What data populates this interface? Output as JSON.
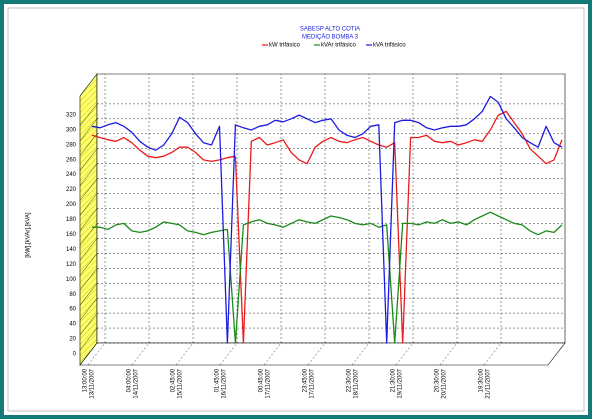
{
  "chart_data": {
    "type": "line",
    "title": "SABESP ALTO COTIA",
    "subtitle": "MEDIÇÃO BOMBA 3",
    "y_label": "[kW],[kVAr],[kVA]",
    "x_tick_labels": [
      [
        "13:00:00",
        "13/11/2007"
      ],
      [
        "04:00:00",
        "14/11/2007"
      ],
      [
        "02:45:00",
        "15/11/2007"
      ],
      [
        "01:45:00",
        "16/11/2007"
      ],
      [
        "00:45:00",
        "17/11/2007"
      ],
      [
        "23:45:00",
        "17/11/2007"
      ],
      [
        "22:30:00",
        "18/11/2007"
      ],
      [
        "21:30:00",
        "19/11/2007"
      ],
      [
        "20:30:00",
        "20/11/2007"
      ],
      [
        "19:30:00",
        "21/11/2007"
      ]
    ],
    "ylim": [
      0,
      360
    ],
    "yticks": [
      0,
      20,
      40,
      60,
      80,
      100,
      120,
      140,
      160,
      180,
      200,
      220,
      240,
      260,
      280,
      300,
      320
    ],
    "grid": true,
    "series": [
      {
        "name": "kW trifásico",
        "color": "#e81c1c",
        "values": [
          278,
          275,
          272,
          270,
          275,
          268,
          258,
          250,
          248,
          250,
          255,
          262,
          262,
          255,
          245,
          243,
          245,
          248,
          250,
          0,
          270,
          275,
          265,
          268,
          272,
          255,
          245,
          240,
          262,
          270,
          275,
          270,
          268,
          272,
          275,
          270,
          265,
          262,
          268,
          0,
          275,
          275,
          278,
          270,
          268,
          270,
          265,
          268,
          272,
          270,
          285,
          305,
          310,
          295,
          280,
          260,
          250,
          240,
          245,
          272
        ]
      },
      {
        "name": "kVAr trifásico",
        "color": "#1a8a1a",
        "values": [
          155,
          155,
          152,
          158,
          160,
          150,
          148,
          150,
          155,
          162,
          160,
          158,
          150,
          148,
          145,
          148,
          150,
          152,
          0,
          158,
          162,
          165,
          160,
          158,
          155,
          160,
          165,
          162,
          160,
          165,
          170,
          168,
          165,
          160,
          158,
          160,
          155,
          158,
          0,
          160,
          160,
          158,
          162,
          160,
          165,
          160,
          162,
          158,
          165,
          170,
          175,
          170,
          165,
          160,
          158,
          150,
          145,
          150,
          148,
          158
        ]
      },
      {
        "name": "kVA trifásico",
        "color": "#1c1ce0",
        "values": [
          290,
          288,
          292,
          295,
          290,
          282,
          270,
          262,
          258,
          265,
          280,
          302,
          295,
          280,
          268,
          265,
          290,
          0,
          292,
          288,
          285,
          290,
          292,
          298,
          296,
          300,
          305,
          300,
          295,
          298,
          300,
          285,
          278,
          275,
          280,
          290,
          292,
          0,
          295,
          298,
          298,
          295,
          288,
          285,
          288,
          290,
          290,
          292,
          300,
          310,
          330,
          322,
          300,
          288,
          275,
          268,
          262,
          290,
          268,
          262
        ]
      }
    ]
  }
}
